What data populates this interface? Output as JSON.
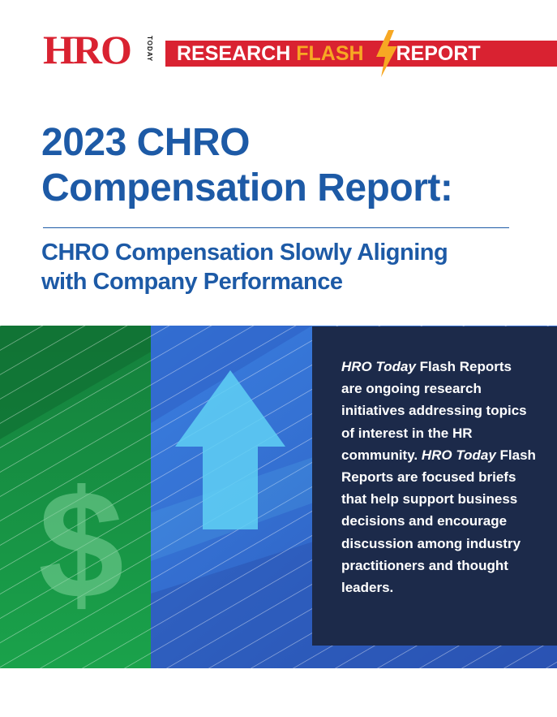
{
  "brand": {
    "logo_main": "HRO",
    "logo_side": "TODAY",
    "banner_part1": "RESEARCH",
    "banner_part2": "FLASH",
    "banner_part3": "REPORT"
  },
  "title": {
    "line1": "2023 CHRO",
    "line2": "Compensation Report:"
  },
  "subtitle": {
    "line1": "CHRO Compensation Slowly Aligning",
    "line2": "with Company Performance"
  },
  "graphic": {
    "dollar_symbol": "$",
    "arrow_icon": "up-arrow-icon"
  },
  "info": {
    "pub1": "HRO Today",
    "text1": " Flash Reports are ongoing research initiatives addressing topics of interest in the HR community. ",
    "pub2": "HRO Today",
    "text2": " Flash Reports are focused briefs that help support business decisions and encourage discussion among industry practitioners and thought leaders."
  },
  "colors": {
    "brand_red": "#d92231",
    "flash_orange": "#f7a823",
    "title_blue": "#1d5aa6",
    "panel_navy": "#1c2a4a",
    "green": "#1a9a48",
    "blue": "#2f6fd0"
  }
}
